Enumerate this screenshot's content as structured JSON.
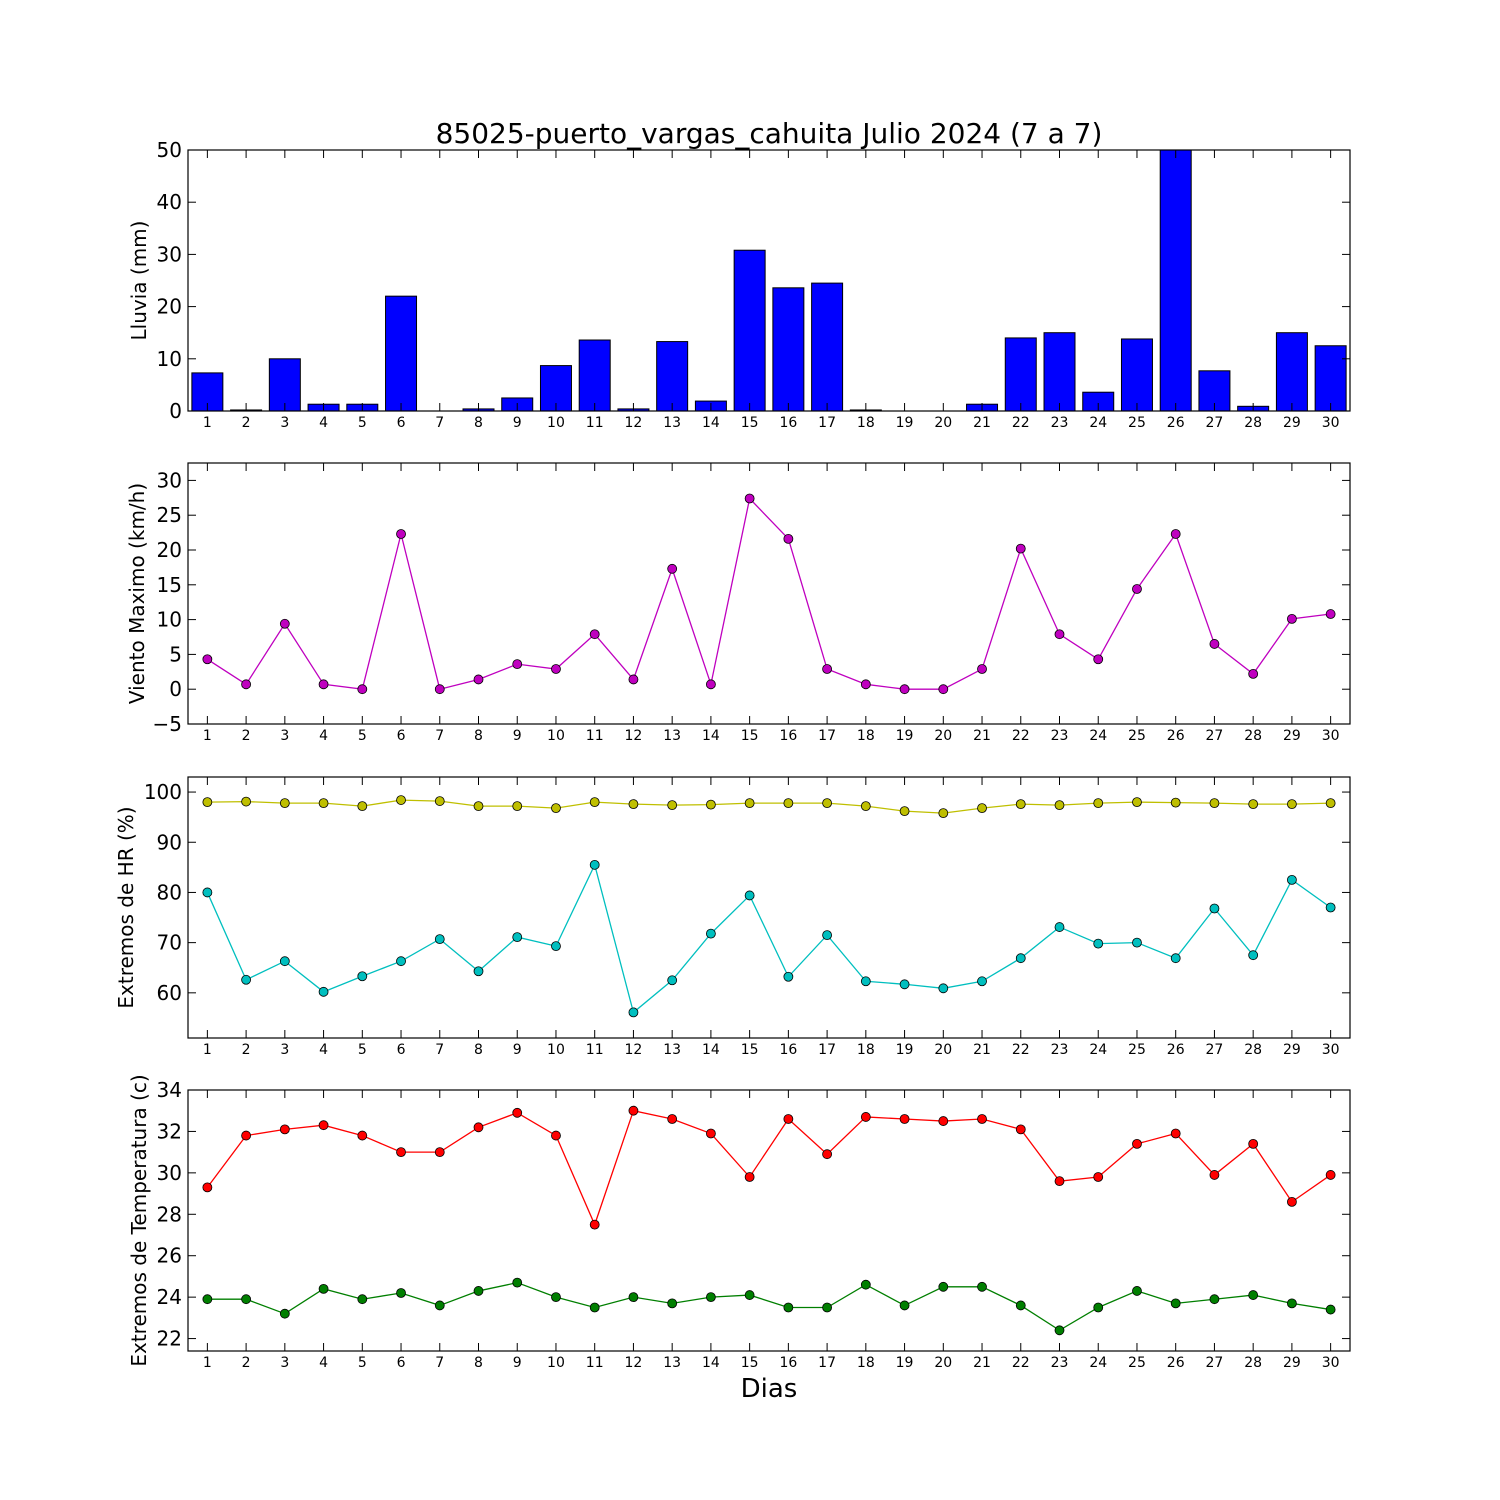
{
  "figure": {
    "title": "85025-puerto_vargas_cahuita Julio 2024  (7 a 7)",
    "xlabel": "Dias",
    "days": [
      "1",
      "2",
      "3",
      "4",
      "5",
      "6",
      "7",
      "8",
      "9",
      "10",
      "11",
      "12",
      "13",
      "14",
      "15",
      "16",
      "17",
      "18",
      "19",
      "20",
      "21",
      "22",
      "23",
      "24",
      "25",
      "26",
      "27",
      "28",
      "29",
      "30"
    ]
  },
  "chart_data": [
    {
      "type": "bar",
      "ylabel": "Lluvia (mm)",
      "ylim": [
        0,
        50
      ],
      "yticks": [
        0,
        10,
        20,
        30,
        40,
        50
      ],
      "categories": [
        "1",
        "2",
        "3",
        "4",
        "5",
        "6",
        "7",
        "8",
        "9",
        "10",
        "11",
        "12",
        "13",
        "14",
        "15",
        "16",
        "17",
        "18",
        "19",
        "20",
        "21",
        "22",
        "23",
        "24",
        "25",
        "26",
        "27",
        "28",
        "29",
        "30"
      ],
      "series": [
        {
          "color": "#0000ff",
          "values": [
            7.3,
            0.2,
            10.0,
            1.3,
            1.3,
            22.0,
            0.0,
            0.4,
            2.5,
            8.7,
            13.6,
            0.4,
            13.3,
            1.9,
            30.8,
            23.6,
            24.5,
            0.2,
            0.0,
            0.0,
            1.3,
            14.0,
            15.0,
            3.6,
            13.8,
            50.0,
            7.7,
            0.9,
            15.0,
            12.5
          ]
        }
      ],
      "grid": false
    },
    {
      "type": "line",
      "ylabel": "Viento Maximo (km/h)",
      "ylim": [
        -5,
        32.5
      ],
      "yticks": [
        -5,
        0,
        5,
        10,
        15,
        20,
        25,
        30
      ],
      "categories": [
        "1",
        "2",
        "3",
        "4",
        "5",
        "6",
        "7",
        "8",
        "9",
        "10",
        "11",
        "12",
        "13",
        "14",
        "15",
        "16",
        "17",
        "18",
        "19",
        "20",
        "21",
        "22",
        "23",
        "24",
        "25",
        "26",
        "27",
        "28",
        "29",
        "30"
      ],
      "series": [
        {
          "color": "#bf00bf",
          "values": [
            4.3,
            0.7,
            9.4,
            0.7,
            0.0,
            22.3,
            0.0,
            1.4,
            3.6,
            2.9,
            7.9,
            1.4,
            17.3,
            0.7,
            27.4,
            21.6,
            2.9,
            0.7,
            0.0,
            0.0,
            2.9,
            20.2,
            7.9,
            4.3,
            14.4,
            22.3,
            6.5,
            2.2,
            10.1,
            10.8
          ]
        }
      ],
      "grid": false
    },
    {
      "type": "line",
      "ylabel": "Extremos de HR (%)",
      "ylim": [
        51,
        103
      ],
      "yticks": [
        60,
        70,
        80,
        90,
        100
      ],
      "categories": [
        "1",
        "2",
        "3",
        "4",
        "5",
        "6",
        "7",
        "8",
        "9",
        "10",
        "11",
        "12",
        "13",
        "14",
        "15",
        "16",
        "17",
        "18",
        "19",
        "20",
        "21",
        "22",
        "23",
        "24",
        "25",
        "26",
        "27",
        "28",
        "29",
        "30"
      ],
      "series": [
        {
          "color": "#bfbf00",
          "values": [
            98.0,
            98.1,
            97.8,
            97.8,
            97.2,
            98.4,
            98.2,
            97.2,
            97.2,
            96.8,
            98.0,
            97.6,
            97.4,
            97.5,
            97.8,
            97.8,
            97.8,
            97.2,
            96.2,
            95.8,
            96.8,
            97.6,
            97.4,
            97.8,
            98.0,
            97.9,
            97.8,
            97.6,
            97.6,
            97.8
          ]
        },
        {
          "color": "#00bfbf",
          "values": [
            80.0,
            62.6,
            66.3,
            60.2,
            63.3,
            66.3,
            70.7,
            64.3,
            71.1,
            69.3,
            85.5,
            56.1,
            62.5,
            71.8,
            79.4,
            63.2,
            71.5,
            62.3,
            61.7,
            60.9,
            62.3,
            66.9,
            73.1,
            69.8,
            70.0,
            66.9,
            76.8,
            67.5,
            82.5,
            77.0
          ]
        }
      ],
      "grid": false
    },
    {
      "type": "line",
      "ylabel": "Extremos de Temperatura (c)",
      "ylim": [
        21.4,
        34
      ],
      "yticks": [
        22,
        24,
        26,
        28,
        30,
        32,
        34
      ],
      "categories": [
        "1",
        "2",
        "3",
        "4",
        "5",
        "6",
        "7",
        "8",
        "9",
        "10",
        "11",
        "12",
        "13",
        "14",
        "15",
        "16",
        "17",
        "18",
        "19",
        "20",
        "21",
        "22",
        "23",
        "24",
        "25",
        "26",
        "27",
        "28",
        "29",
        "30"
      ],
      "series": [
        {
          "color": "#ff0000",
          "values": [
            29.3,
            31.8,
            32.1,
            32.3,
            31.8,
            31.0,
            31.0,
            32.2,
            32.9,
            31.8,
            27.5,
            33.0,
            32.6,
            31.9,
            29.8,
            32.6,
            30.9,
            32.7,
            32.6,
            32.5,
            32.6,
            32.1,
            29.6,
            29.8,
            31.4,
            31.9,
            29.9,
            31.4,
            28.6,
            29.9
          ]
        },
        {
          "color": "#007f00",
          "values": [
            23.9,
            23.9,
            23.2,
            24.4,
            23.9,
            24.2,
            23.6,
            24.3,
            24.7,
            24.0,
            23.5,
            24.0,
            23.7,
            24.0,
            24.1,
            23.5,
            23.5,
            24.6,
            23.6,
            24.5,
            24.5,
            23.6,
            22.4,
            23.5,
            24.3,
            23.7,
            23.9,
            24.1,
            23.7,
            23.4
          ]
        }
      ],
      "grid": false
    }
  ]
}
